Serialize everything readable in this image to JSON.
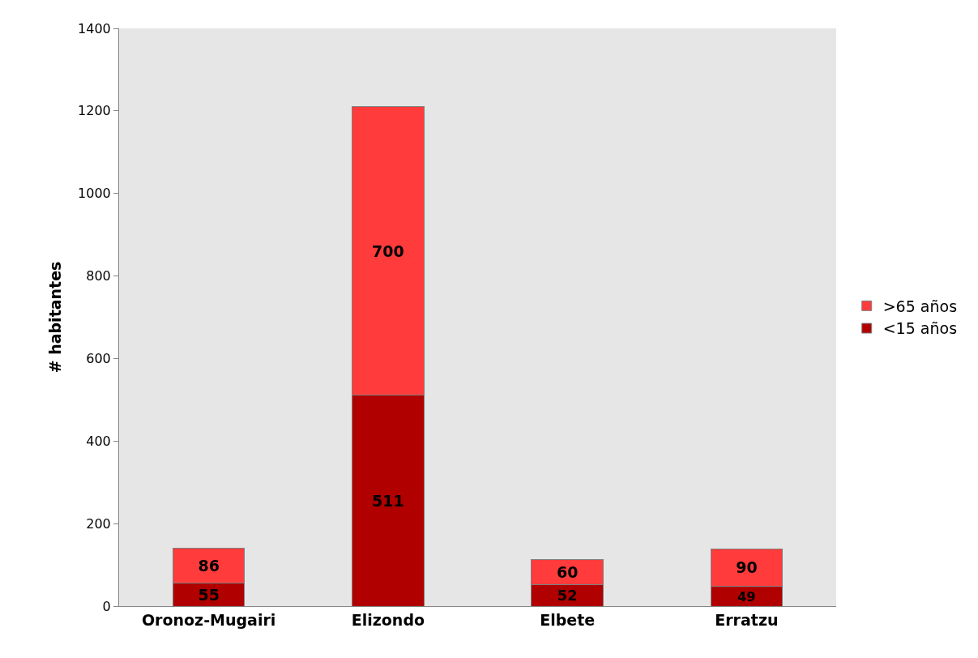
{
  "chart_data": {
    "type": "bar",
    "ylabel": "# habitantes",
    "categories": [
      "Oronoz-Mugairi",
      "Elizondo",
      "Elbete",
      "Erratzu"
    ],
    "series": [
      {
        "name": "<15 años",
        "color": "#b00000",
        "values": [
          55,
          511,
          52,
          49
        ]
      },
      {
        "name": ">65 años",
        "color": "#ff3b3b",
        "values": [
          86,
          700,
          60,
          90
        ]
      }
    ],
    "stacked": true,
    "ylim": [
      0,
      1400
    ],
    "yticks": [
      0,
      200,
      400,
      600,
      800,
      1000,
      1200,
      1400
    ],
    "data_labels": true,
    "grid": false,
    "legend": "right"
  }
}
